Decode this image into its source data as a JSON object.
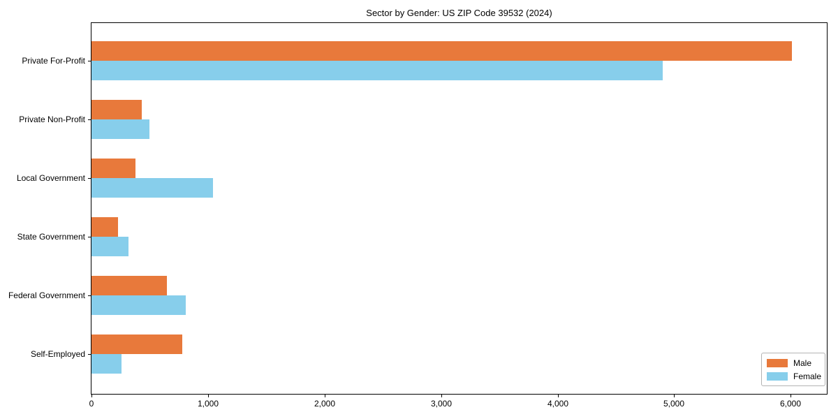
{
  "chart_data": {
    "type": "bar",
    "orientation": "horizontal",
    "title": "Sector by Gender: US ZIP Code 39532 (2024)",
    "categories": [
      "Private For-Profit",
      "Private Non-Profit",
      "Local Government",
      "State Government",
      "Federal Government",
      "Self-Employed"
    ],
    "series": [
      {
        "name": "Male",
        "color": "#E8793B",
        "values": [
          6010,
          430,
          380,
          230,
          650,
          780
        ]
      },
      {
        "name": "Female",
        "color": "#87CEEB",
        "values": [
          4900,
          500,
          1040,
          320,
          810,
          260
        ]
      }
    ],
    "xlabel": "",
    "ylabel": "",
    "xlim": [
      0,
      6310
    ],
    "xticks": [
      0,
      1000,
      2000,
      3000,
      4000,
      5000,
      6000
    ],
    "xtick_labels": [
      "0",
      "1,000",
      "2,000",
      "3,000",
      "4,000",
      "5,000",
      "6,000"
    ],
    "grid": false,
    "legend": {
      "position": "lower-right",
      "entries": [
        "Male",
        "Female"
      ]
    }
  }
}
